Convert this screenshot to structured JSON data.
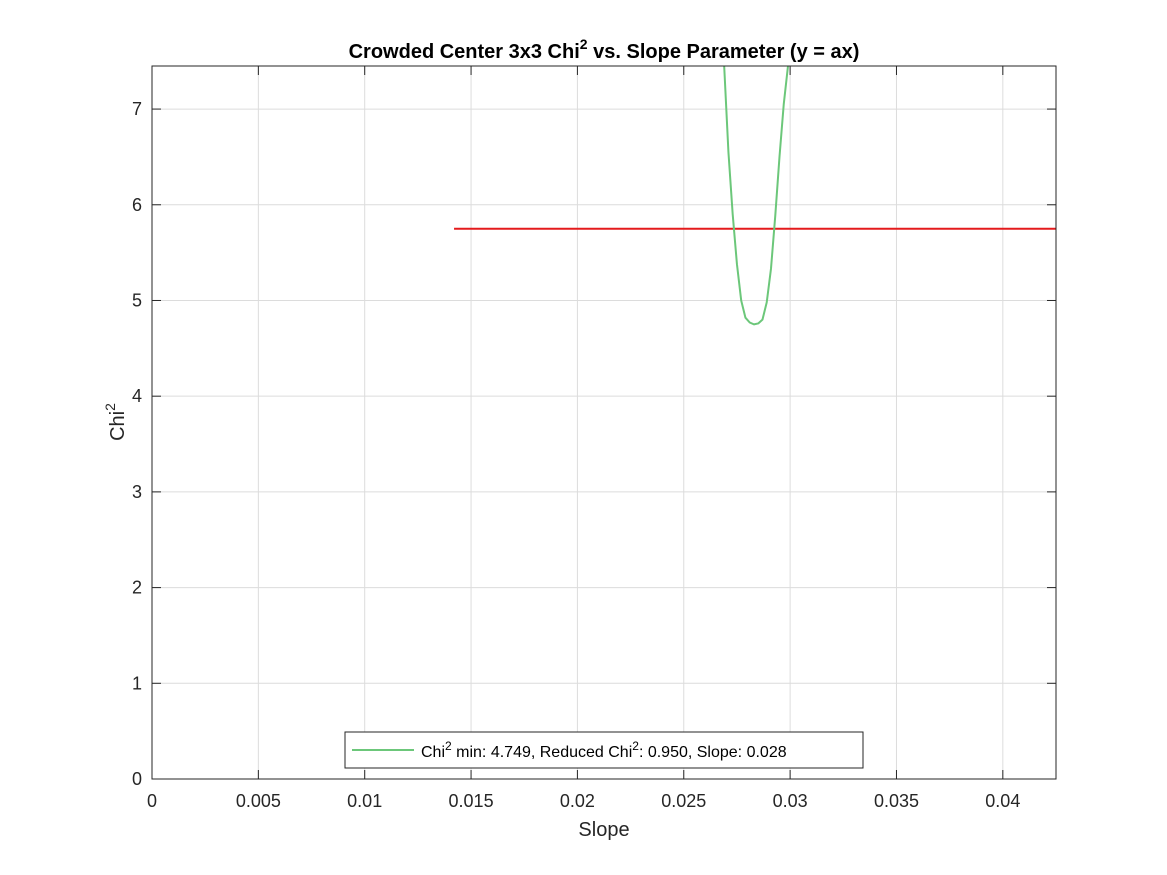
{
  "chart_data": {
    "type": "line",
    "title": {
      "prefix": "Crowded Center 3x3 Chi",
      "sup": "2",
      "suffix": " vs. Slope Parameter (y = ax)"
    },
    "xlabel": "Slope",
    "ylabel": {
      "base": "Chi",
      "sup": "2"
    },
    "xlim": [
      0,
      0.0425
    ],
    "ylim": [
      0,
      7.45
    ],
    "xticks": [
      0,
      0.005,
      0.01,
      0.015,
      0.02,
      0.025,
      0.03,
      0.035,
      0.04
    ],
    "xtick_labels": [
      "0",
      "0.005",
      "0.01",
      "0.015",
      "0.02",
      "0.025",
      "0.03",
      "0.035",
      "0.04"
    ],
    "yticks": [
      0,
      1,
      2,
      3,
      4,
      5,
      6,
      7
    ],
    "ytick_labels": [
      "0",
      "1",
      "2",
      "3",
      "4",
      "5",
      "6",
      "7"
    ],
    "grid": true,
    "series": [
      {
        "color": "#6cc77a",
        "x": [
          0.0269,
          0.0271,
          0.0273,
          0.0275,
          0.0277,
          0.0279,
          0.0281,
          0.0283,
          0.0285,
          0.0287,
          0.0289,
          0.0291,
          0.0293,
          0.0295,
          0.0297,
          0.0299
        ],
        "y": [
          7.45,
          6.55,
          5.9,
          5.38,
          5.0,
          4.82,
          4.77,
          4.75,
          4.76,
          4.8,
          4.98,
          5.33,
          5.88,
          6.5,
          7.05,
          7.45
        ]
      }
    ],
    "reference_line": {
      "color": "#e41a1c",
      "x": [
        0.0142,
        0.0425
      ],
      "y": [
        5.749,
        5.749
      ]
    },
    "legend": {
      "placement": "bottom-center",
      "entries": [
        {
          "color": "#6cc77a",
          "parts": [
            {
              "text": "Chi",
              "sup": false
            },
            {
              "text": "2",
              "sup": true
            },
            {
              "text": " min: 4.749, Reduced Chi",
              "sup": false
            },
            {
              "text": "2",
              "sup": true
            },
            {
              "text": ": 0.950, Slope: 0.028",
              "sup": false
            }
          ]
        }
      ]
    }
  }
}
